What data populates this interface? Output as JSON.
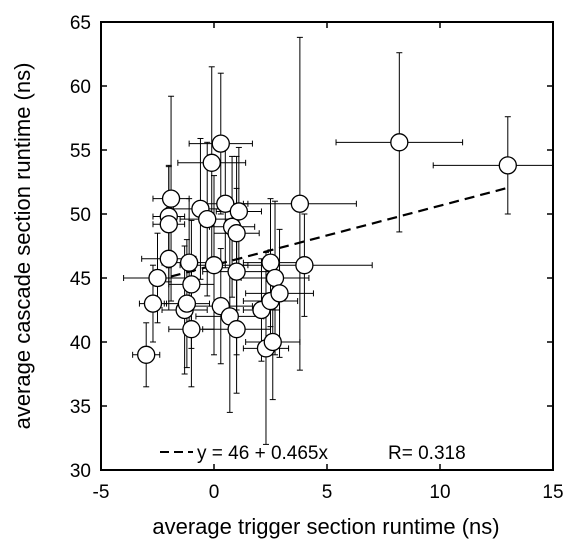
{
  "chart_data": {
    "type": "scatter",
    "title": "",
    "xlabel": "average trigger section runtime (ns)",
    "ylabel": "average cascade section runtime (ns)",
    "xlim": [
      -5,
      15
    ],
    "ylim": [
      30,
      65
    ],
    "xticks": [
      "-5",
      "0",
      "5",
      "10",
      "15"
    ],
    "yticks": [
      "30",
      "35",
      "40",
      "45",
      "50",
      "55",
      "60",
      "65"
    ],
    "grid": false,
    "points": [
      {
        "x": -3.0,
        "y": 39.0,
        "xerr": 0.6,
        "yerr": 2.5
      },
      {
        "x": -2.7,
        "y": 43.0,
        "xerr": 0.6,
        "yerr": 3.0
      },
      {
        "x": -2.5,
        "y": 45.0,
        "xerr": 1.5,
        "yerr": 3.5
      },
      {
        "x": -2.0,
        "y": 46.5,
        "xerr": 1.2,
        "yerr": 4.0
      },
      {
        "x": -1.9,
        "y": 51.2,
        "xerr": 0.8,
        "yerr": 8.0
      },
      {
        "x": -2.0,
        "y": 49.8,
        "xerr": 0.7,
        "yerr": 4.0
      },
      {
        "x": -2.0,
        "y": 49.2,
        "xerr": 0.7,
        "yerr": 4.5
      },
      {
        "x": -1.3,
        "y": 42.5,
        "xerr": 1.0,
        "yerr": 5.0
      },
      {
        "x": -1.2,
        "y": 43.0,
        "xerr": 1.0,
        "yerr": 5.0
      },
      {
        "x": -1.0,
        "y": 44.5,
        "xerr": 1.0,
        "yerr": 5.0
      },
      {
        "x": -1.0,
        "y": 41.0,
        "xerr": 1.0,
        "yerr": 4.5
      },
      {
        "x": -1.1,
        "y": 46.2,
        "xerr": 1.2,
        "yerr": 5.0
      },
      {
        "x": -0.6,
        "y": 50.4,
        "xerr": 1.2,
        "yerr": 5.5
      },
      {
        "x": -0.3,
        "y": 49.6,
        "xerr": 1.2,
        "yerr": 6.0
      },
      {
        "x": -0.1,
        "y": 54.0,
        "xerr": 1.5,
        "yerr": 7.5
      },
      {
        "x": 0.0,
        "y": 46.0,
        "xerr": 1.5,
        "yerr": 7.0
      },
      {
        "x": 0.3,
        "y": 55.5,
        "xerr": 1.4,
        "yerr": 5.5
      },
      {
        "x": 0.3,
        "y": 42.8,
        "xerr": 1.4,
        "yerr": 4.5
      },
      {
        "x": 0.5,
        "y": 50.8,
        "xerr": 1.0,
        "yerr": 5.0
      },
      {
        "x": 0.7,
        "y": 42.0,
        "xerr": 1.5,
        "yerr": 7.5
      },
      {
        "x": 0.8,
        "y": 49.0,
        "xerr": 1.0,
        "yerr": 5.5
      },
      {
        "x": 1.0,
        "y": 48.5,
        "xerr": 1.0,
        "yerr": 6.0
      },
      {
        "x": 1.0,
        "y": 45.5,
        "xerr": 1.5,
        "yerr": 6.5
      },
      {
        "x": 1.0,
        "y": 41.0,
        "xerr": 1.5,
        "yerr": 5.0
      },
      {
        "x": 1.1,
        "y": 50.2,
        "xerr": 1.0,
        "yerr": 5.0
      },
      {
        "x": 2.1,
        "y": 42.5,
        "xerr": 0.8,
        "yerr": 4.0
      },
      {
        "x": 2.3,
        "y": 39.5,
        "xerr": 1.0,
        "yerr": 7.5
      },
      {
        "x": 2.5,
        "y": 46.2,
        "xerr": 1.2,
        "yerr": 5.0
      },
      {
        "x": 2.5,
        "y": 43.2,
        "xerr": 1.2,
        "yerr": 4.0
      },
      {
        "x": 2.6,
        "y": 40.0,
        "xerr": 1.2,
        "yerr": 4.5
      },
      {
        "x": 2.7,
        "y": 45.0,
        "xerr": 1.5,
        "yerr": 6.0
      },
      {
        "x": 2.9,
        "y": 43.8,
        "xerr": 1.5,
        "yerr": 5.0
      },
      {
        "x": 3.8,
        "y": 50.8,
        "xerr": 2.5,
        "yerr": 13.0
      },
      {
        "x": 4.0,
        "y": 46.0,
        "xerr": 3.0,
        "yerr": 4.0
      },
      {
        "x": 8.2,
        "y": 55.6,
        "xerr": 2.8,
        "yerr": 7.0
      },
      {
        "x": 13.0,
        "y": 53.8,
        "xerr": 3.3,
        "yerr": 3.8
      }
    ],
    "fit": {
      "intercept": 46,
      "slope": 0.465,
      "x_range": [
        -2.6,
        13.0
      ]
    },
    "annotation": "y = 46 + 0.465x",
    "r_label": "R= 0.318"
  }
}
